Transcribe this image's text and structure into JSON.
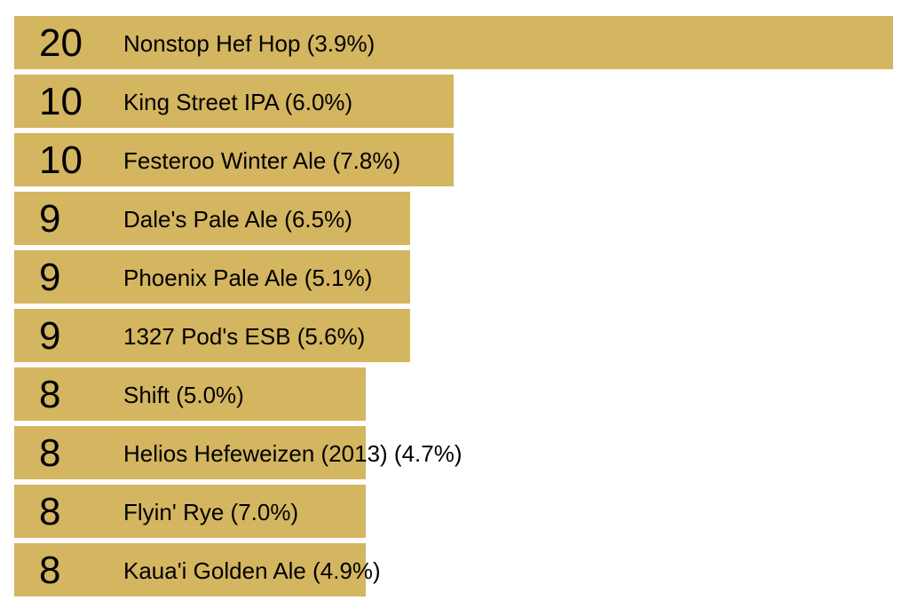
{
  "chart_data": {
    "type": "bar",
    "orientation": "horizontal",
    "categories": [
      "Nonstop Hef Hop (3.9%)",
      "King Street IPA (6.0%)",
      "Festeroo Winter Ale (7.8%)",
      "Dale's Pale Ale (6.5%)",
      "Phoenix Pale Ale (5.1%)",
      "1327 Pod's ESB (5.6%)",
      "Shift (5.0%)",
      "Helios Hefeweizen (2013) (4.7%)",
      "Flyin' Rye (7.0%)",
      "Kaua'i Golden Ale (4.9%)"
    ],
    "values": [
      20,
      10,
      10,
      9,
      9,
      9,
      8,
      8,
      8,
      8
    ],
    "xlim": [
      0,
      20
    ],
    "grid": false,
    "legend": "none",
    "bar_color": "#d4b560",
    "text_color": "#000000"
  }
}
